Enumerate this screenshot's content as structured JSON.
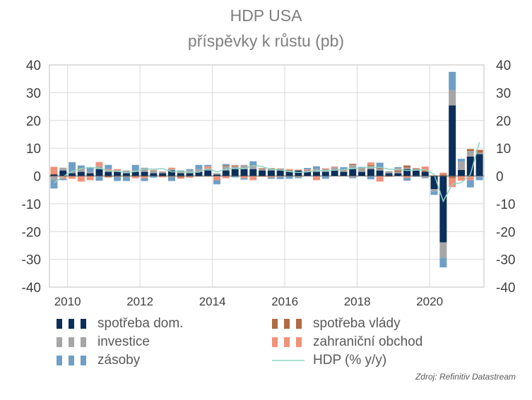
{
  "title": "HDP USA",
  "subtitle": "příspěvky k růstu  (pb)",
  "source": "Zdroj: Refinitiv Datastream",
  "chart_data": {
    "type": "bar",
    "stacked": true,
    "x_tick_labels": [
      "2010",
      "2012",
      "2014",
      "2016",
      "2018",
      "2020"
    ],
    "y_ticks": [
      40,
      30,
      20,
      10,
      0,
      -10,
      -20,
      -30,
      -40
    ],
    "ylim": [
      -40,
      40
    ],
    "grid": true,
    "legend_placement": "bottom",
    "x": [
      "2009Q3",
      "2009Q4",
      "2010Q1",
      "2010Q2",
      "2010Q3",
      "2010Q4",
      "2011Q1",
      "2011Q2",
      "2011Q3",
      "2011Q4",
      "2012Q1",
      "2012Q2",
      "2012Q3",
      "2012Q4",
      "2013Q1",
      "2013Q2",
      "2013Q3",
      "2013Q4",
      "2014Q1",
      "2014Q2",
      "2014Q3",
      "2014Q4",
      "2015Q1",
      "2015Q2",
      "2015Q3",
      "2015Q4",
      "2016Q1",
      "2016Q2",
      "2016Q3",
      "2016Q4",
      "2017Q1",
      "2017Q2",
      "2017Q3",
      "2017Q4",
      "2018Q1",
      "2018Q2",
      "2018Q3",
      "2018Q4",
      "2019Q1",
      "2019Q2",
      "2019Q3",
      "2019Q4",
      "2020Q1",
      "2020Q2",
      "2020Q3",
      "2020Q4",
      "2021Q1",
      "2021Q2"
    ],
    "series": [
      {
        "name": "spotřeba dom.",
        "color": "#0b2f5a",
        "values": [
          0.5,
          2.0,
          1.0,
          1.5,
          1.0,
          2.5,
          1.5,
          1.5,
          1.0,
          1.5,
          1.5,
          1.0,
          1.0,
          2.0,
          1.0,
          1.0,
          1.5,
          2.0,
          0.5,
          2.0,
          2.5,
          2.5,
          2.5,
          2.0,
          2.0,
          2.0,
          1.5,
          2.0,
          1.5,
          1.5,
          1.5,
          2.0,
          1.5,
          2.5,
          1.5,
          2.5,
          2.0,
          1.0,
          1.0,
          2.5,
          2.0,
          1.5,
          -4.7,
          -23.9,
          25.4,
          2.2,
          7.0,
          7.9
        ]
      },
      {
        "name": "investice",
        "color": "#a6a6a6",
        "values": [
          -1.5,
          1.0,
          0.5,
          1.0,
          0.5,
          1.0,
          0.5,
          0.5,
          1.0,
          0.5,
          1.5,
          1.0,
          0.5,
          0.5,
          0.5,
          1.0,
          1.0,
          0.5,
          0.5,
          1.5,
          1.0,
          1.5,
          1.0,
          0.5,
          0.5,
          0.5,
          0.5,
          -0.5,
          0.5,
          1.0,
          1.0,
          1.0,
          0.5,
          1.5,
          1.0,
          1.0,
          0.5,
          0.5,
          0.5,
          0.5,
          0.5,
          -0.5,
          -0.8,
          -5.5,
          5.5,
          3.0,
          2.0,
          0.5
        ]
      },
      {
        "name": "spotřeba vlády",
        "color": "#b06a44",
        "values": [
          0.3,
          0.0,
          0.0,
          0.3,
          0.0,
          -0.2,
          -0.5,
          -0.3,
          -0.3,
          -0.3,
          -0.3,
          -0.1,
          0.1,
          -0.3,
          -0.5,
          -0.3,
          -0.2,
          -0.2,
          0.0,
          0.3,
          0.2,
          0.0,
          0.3,
          0.3,
          0.3,
          0.2,
          0.2,
          0.0,
          0.1,
          0.0,
          0.0,
          0.0,
          0.1,
          0.4,
          0.2,
          0.4,
          0.3,
          0.1,
          0.5,
          0.8,
          0.3,
          0.4,
          0.2,
          0.5,
          -0.8,
          -0.1,
          0.7,
          1.0
        ]
      },
      {
        "name": "zahraniční obchod",
        "color": "#f0917a",
        "values": [
          2.5,
          -1.0,
          -1.0,
          -2.0,
          -1.5,
          1.5,
          0.5,
          0.5,
          0.0,
          -0.5,
          -0.5,
          0.2,
          -0.5,
          0.5,
          -0.5,
          -0.3,
          0.0,
          1.0,
          -1.5,
          -0.8,
          0.3,
          -0.8,
          -1.5,
          -0.3,
          -0.5,
          -0.3,
          0.3,
          0.3,
          0.3,
          -1.5,
          0.3,
          0.3,
          0.3,
          -0.3,
          0.3,
          1.0,
          -2.0,
          -0.3,
          0.7,
          -0.7,
          -0.1,
          1.5,
          0.1,
          0.7,
          -3.2,
          -1.6,
          -1.5,
          -0.2
        ]
      },
      {
        "name": "zásoby",
        "color": "#6f9fc6",
        "values": [
          -3.0,
          -0.5,
          3.5,
          1.0,
          1.5,
          -1.5,
          1.5,
          -1.5,
          -1.5,
          2.0,
          -1.0,
          -0.5,
          0.0,
          -1.5,
          0.5,
          0.5,
          1.5,
          0.5,
          -1.5,
          0.5,
          -0.5,
          -0.5,
          1.5,
          0.0,
          -0.5,
          -0.8,
          -1.0,
          -0.3,
          0.5,
          1.0,
          -1.0,
          0.1,
          0.8,
          -0.5,
          0.3,
          -1.2,
          2.0,
          0.1,
          0.5,
          -1.0,
          -0.2,
          -0.3,
          -1.3,
          -3.5,
          6.6,
          1.0,
          -2.6,
          -1.3
        ]
      },
      {
        "name": "HDP (% y/y)",
        "color": "#8fd3c3",
        "type": "line",
        "values": [
          -2.5,
          -0.2,
          1.7,
          2.7,
          3.1,
          2.8,
          1.9,
          1.7,
          1.2,
          1.6,
          2.6,
          2.5,
          2.7,
          1.5,
          1.6,
          1.3,
          1.4,
          2.7,
          1.5,
          2.5,
          2.8,
          2.6,
          3.8,
          3.4,
          2.4,
          2.2,
          1.6,
          1.3,
          1.5,
          2.0,
          1.9,
          2.1,
          2.3,
          2.7,
          2.9,
          3.2,
          3.1,
          2.5,
          2.3,
          2.0,
          2.1,
          2.3,
          0.6,
          -9.1,
          -2.9,
          -2.4,
          0.5,
          12.2
        ]
      }
    ]
  },
  "legend": [
    {
      "label": "spotřeba dom.",
      "color": "#0b2f5a",
      "kind": "dash"
    },
    {
      "label": "spotřeba vlády",
      "color": "#b06a44",
      "kind": "dash"
    },
    {
      "label": "investice",
      "color": "#a6a6a6",
      "kind": "dash"
    },
    {
      "label": "zahraniční obchod",
      "color": "#f0917a",
      "kind": "dash"
    },
    {
      "label": "zásoby",
      "color": "#6f9fc6",
      "kind": "dash"
    },
    {
      "label": "HDP (% y/y)",
      "color": "#8fd3c3",
      "kind": "line"
    }
  ]
}
